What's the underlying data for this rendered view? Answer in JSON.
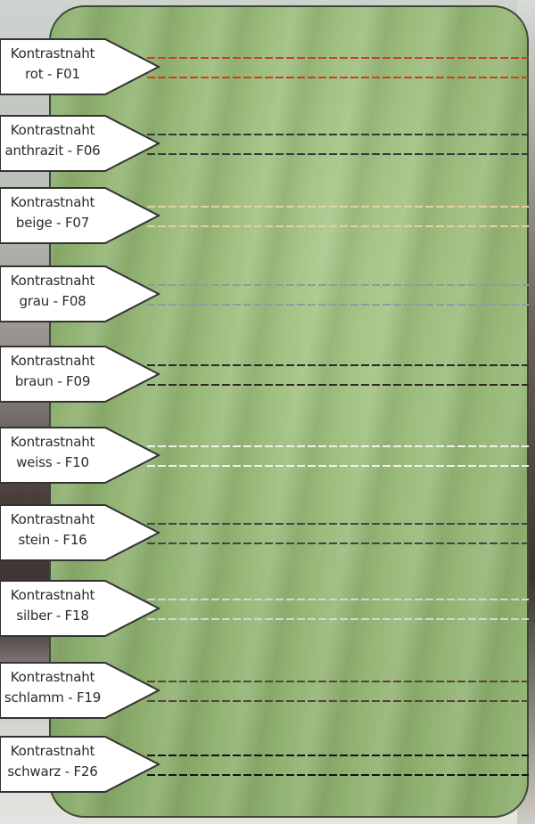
{
  "swatches": [
    {
      "title": "Kontrastnaht",
      "name": "rot - F01",
      "color": "#c8421e"
    },
    {
      "title": "Kontrastnaht",
      "name": "anthrazit - F06",
      "color": "#2f3a3a"
    },
    {
      "title": "Kontrastnaht",
      "name": "beige - F07",
      "color": "#e8cf9c"
    },
    {
      "title": "Kontrastnaht",
      "name": "grau - F08",
      "color": "#8e9ba0"
    },
    {
      "title": "Kontrastnaht",
      "name": "braun - F09",
      "color": "#2e2a22"
    },
    {
      "title": "Kontrastnaht",
      "name": "weiss - F10",
      "color": "#f1f1e4"
    },
    {
      "title": "Kontrastnaht",
      "name": "stein - F16",
      "color": "#3a4848"
    },
    {
      "title": "Kontrastnaht",
      "name": "silber - F18",
      "color": "#cdd9d8"
    },
    {
      "title": "Kontrastnaht",
      "name": "schlamm - F19",
      "color": "#5a4236"
    },
    {
      "title": "Kontrastnaht",
      "name": "schwarz - F26",
      "color": "#141414"
    }
  ],
  "leather_color": "#97b877"
}
